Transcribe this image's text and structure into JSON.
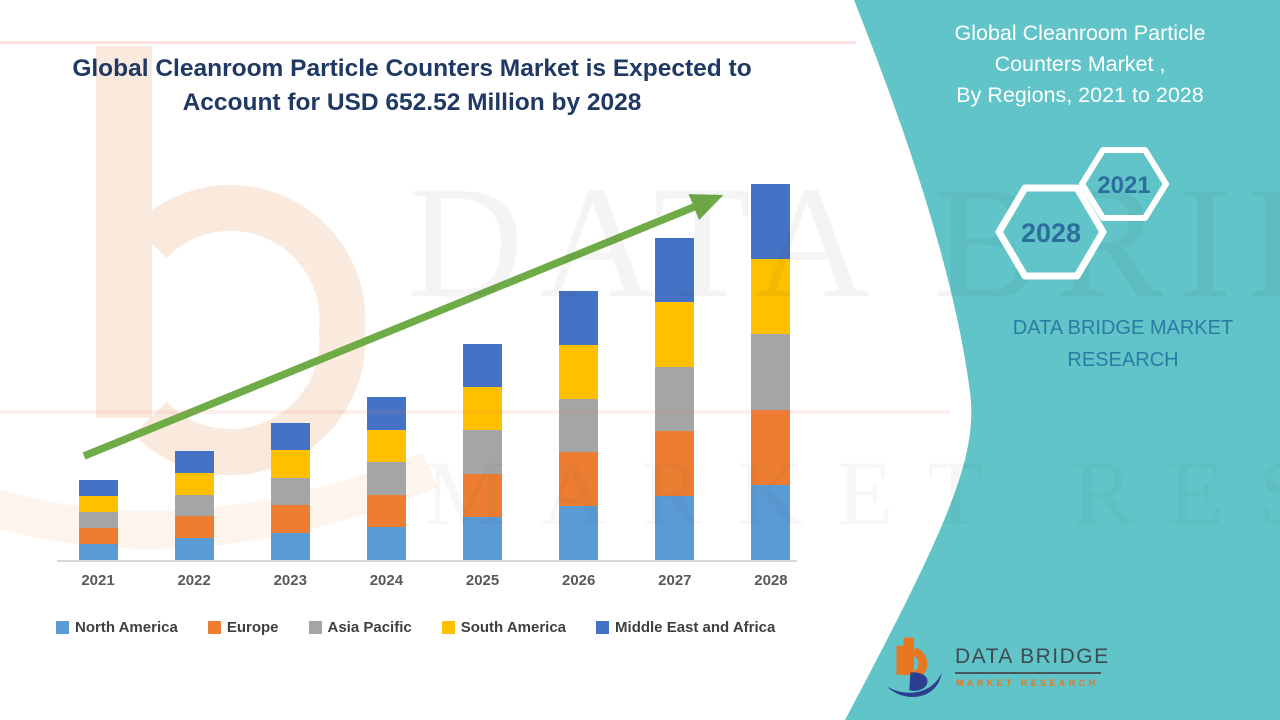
{
  "main_title": {
    "line1": "Global Cleanroom Particle Counters Market is Expected to",
    "line2": "Account for USD 652.52 Million by 2028"
  },
  "chart_data": {
    "type": "bar",
    "stacked": true,
    "unit": "USD Million",
    "title": "Global Cleanroom Particle Counters Market is Expected to Account for USD 652.52 Million by 2028",
    "categories": [
      "2021",
      "2022",
      "2023",
      "2024",
      "2025",
      "2026",
      "2027",
      "2028"
    ],
    "series": [
      {
        "name": "North America",
        "color": "#5B9BD5",
        "values": [
          27.8,
          37.8,
          47.6,
          56.6,
          75.0,
          93.4,
          111.8,
          130.5
        ]
      },
      {
        "name": "Europe",
        "color": "#ED7D31",
        "values": [
          27.8,
          37.8,
          47.6,
          56.6,
          75.0,
          93.4,
          111.8,
          130.5
        ]
      },
      {
        "name": "Asia Pacific",
        "color": "#A5A5A5",
        "values": [
          27.8,
          37.8,
          47.6,
          56.6,
          75.0,
          93.4,
          111.8,
          130.5
        ]
      },
      {
        "name": "South America",
        "color": "#FFC000",
        "values": [
          27.8,
          37.8,
          47.6,
          56.6,
          75.0,
          93.4,
          111.8,
          130.5
        ]
      },
      {
        "name": "Middle East and Africa",
        "color": "#4472C4",
        "values": [
          27.8,
          37.8,
          47.6,
          56.6,
          75.0,
          93.4,
          111.8,
          130.5
        ]
      }
    ],
    "totals": [
      138.8,
      189.2,
      237.8,
      282.9,
      374.8,
      466.8,
      558.8,
      652.52
    ],
    "ylim": [
      0,
      700
    ],
    "grid": false,
    "axis_tick_labels_only": true,
    "legend_position": "bottom",
    "trend_arrow": {
      "color": "#6FAC47",
      "from_year": "2021",
      "to_year": "2028"
    }
  },
  "watermark": {
    "line1": "DATA BRIDGE",
    "line2": "MARKET RESEARCH"
  },
  "sidebar": {
    "title_line1": "Global Cleanroom Particle",
    "title_line2": "Counters Market ,",
    "title_line3": "By Regions,  2021 to 2028",
    "hexagons": [
      {
        "label": "2021"
      },
      {
        "label": "2028"
      }
    ],
    "caption": "DATA BRIDGE MARKET RESEARCH",
    "logo": {
      "brand": "DATA BRIDGE",
      "tagline": "MARKET RESEARCH"
    },
    "background_color": "#60C4C8"
  },
  "colors": {
    "title_text": "#1F3864",
    "axis_label": "#595959",
    "legend_text": "#3F3F3F",
    "sidebar_text": "#FFFFFF",
    "hexagon_year_text": "#2C6E9C",
    "sidebar_caption": "#2A7CA4",
    "logo_orange": "#E87722",
    "logo_navy": "#2C3E8F",
    "arrow_green": "#6FAC47"
  }
}
